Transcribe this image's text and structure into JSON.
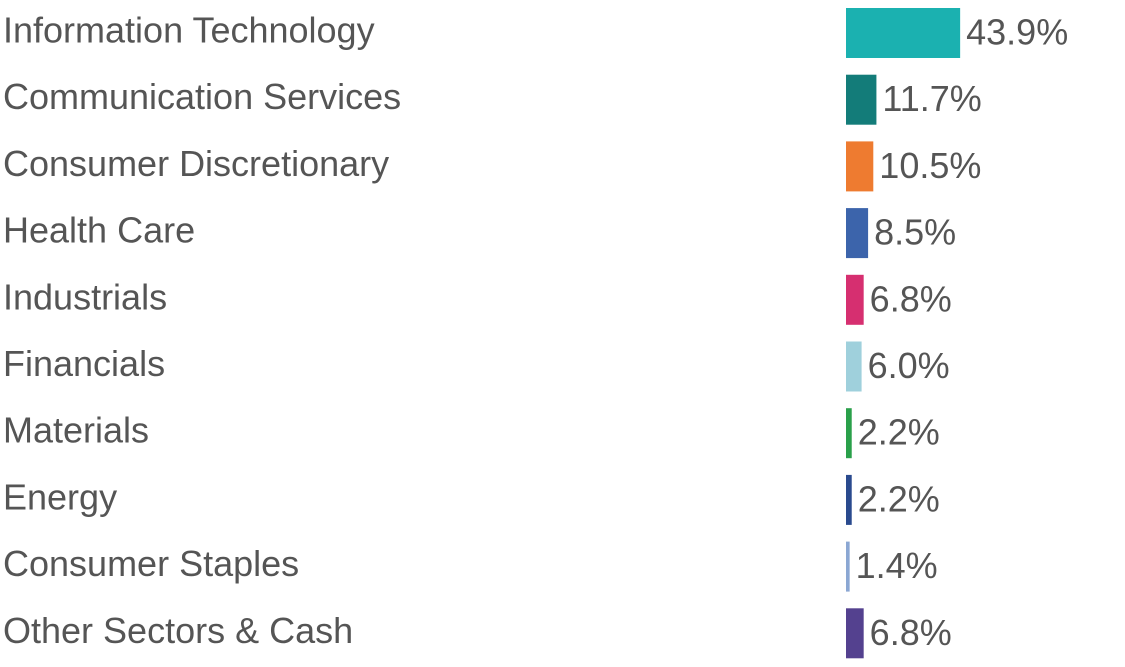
{
  "chart_data": {
    "type": "bar",
    "orientation": "horizontal",
    "categories": [
      "Information Technology",
      "Communication Services",
      "Consumer Discretionary",
      "Health Care",
      "Industrials",
      "Financials",
      "Materials",
      "Energy",
      "Consumer Staples",
      "Other Sectors & Cash"
    ],
    "values": [
      43.9,
      11.7,
      10.5,
      8.5,
      6.8,
      6.0,
      2.2,
      2.2,
      1.4,
      6.8
    ],
    "value_labels": [
      "43.9%",
      "11.7%",
      "10.5%",
      "8.5%",
      "6.8%",
      "6.0%",
      "2.2%",
      "2.2%",
      "1.4%",
      "6.8%"
    ],
    "colors": [
      "#1bb1b0",
      "#137c79",
      "#ee7b30",
      "#3c64ab",
      "#d62f70",
      "#9fd0dc",
      "#2aa04a",
      "#2a4a8e",
      "#8ba7d3",
      "#54418f"
    ],
    "unit": "%",
    "grid": false,
    "legend": "none"
  }
}
